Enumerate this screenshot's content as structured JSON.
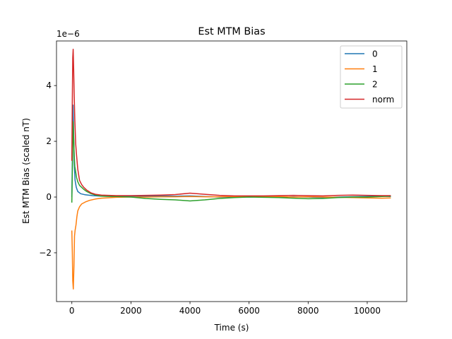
{
  "chart_data": {
    "type": "line",
    "title": "Est MTM Bias",
    "xlabel": "Time (s)",
    "ylabel": "Est MTM Bias (scaled nT)",
    "y_scale_label": "1e−6",
    "xlim": [
      -520,
      11340
    ],
    "ylim": [
      -3.75,
      5.6
    ],
    "xticks": [
      0,
      2000,
      4000,
      6000,
      8000,
      10000
    ],
    "xtick_labels": [
      "0",
      "2000",
      "4000",
      "6000",
      "8000",
      "10000"
    ],
    "yticks": [
      -2,
      0,
      2,
      4
    ],
    "ytick_labels": [
      "−2",
      "0",
      "2",
      "4"
    ],
    "grid": false,
    "legend_position": "top-right",
    "series": [
      {
        "name": "0",
        "color": "#1f77b4",
        "x": [
          0,
          20,
          40,
          60,
          80,
          110,
          150,
          200,
          300,
          450,
          700,
          1000,
          1500,
          2000,
          2500,
          3000,
          3500,
          4000,
          4500,
          5000,
          5500,
          6000,
          6500,
          7000,
          7500,
          8000,
          8500,
          9000,
          9500,
          10000,
          10500,
          10800
        ],
        "values": [
          0.0,
          1.6,
          3.3,
          2.3,
          1.2,
          0.6,
          0.35,
          0.2,
          0.12,
          0.08,
          0.05,
          0.03,
          0.02,
          0.02,
          0.03,
          0.04,
          0.03,
          0.04,
          0.02,
          0.0,
          0.0,
          0.0,
          0.01,
          0.0,
          0.01,
          0.0,
          -0.02,
          0.0,
          0.01,
          0.02,
          0.03,
          0.02
        ]
      },
      {
        "name": "1",
        "color": "#ff7f0e",
        "x": [
          0,
          15,
          30,
          50,
          70,
          90,
          110,
          140,
          170,
          200,
          260,
          330,
          450,
          600,
          800,
          1000,
          1500,
          2000,
          2500,
          3000,
          3500,
          4000,
          4500,
          5000,
          5500,
          6000,
          6500,
          7000,
          7500,
          8000,
          8500,
          9000,
          9500,
          10000,
          10500,
          10800
        ],
        "values": [
          -1.2,
          -2.0,
          -3.0,
          -3.3,
          -2.5,
          -1.4,
          -1.2,
          -1.0,
          -0.7,
          -0.5,
          -0.35,
          -0.25,
          -0.18,
          -0.12,
          -0.07,
          -0.04,
          -0.01,
          0.0,
          0.0,
          0.01,
          0.01,
          0.02,
          0.01,
          0.01,
          0.02,
          0.01,
          0.01,
          0.02,
          0.0,
          0.01,
          0.0,
          -0.01,
          -0.02,
          -0.03,
          -0.04,
          -0.03
        ]
      },
      {
        "name": "2",
        "color": "#2ca02c",
        "x": [
          0,
          20,
          40,
          60,
          80,
          100,
          130,
          160,
          200,
          260,
          330,
          400,
          500,
          650,
          800,
          1000,
          1500,
          2000,
          2500,
          3000,
          3500,
          4000,
          4500,
          5000,
          5500,
          6000,
          6500,
          7000,
          7500,
          8000,
          8500,
          9000,
          9500,
          10000,
          10500,
          10800
        ],
        "values": [
          -0.2,
          1.2,
          2.7,
          2.1,
          1.5,
          1.1,
          0.9,
          0.7,
          0.55,
          0.42,
          0.35,
          0.28,
          0.2,
          0.12,
          0.07,
          0.03,
          0.02,
          0.0,
          -0.05,
          -0.08,
          -0.1,
          -0.14,
          -0.1,
          -0.05,
          -0.02,
          0.0,
          -0.01,
          -0.02,
          -0.04,
          -0.06,
          -0.05,
          -0.02,
          0.0,
          0.0,
          0.02,
          0.03
        ]
      },
      {
        "name": "norm",
        "color": "#d62728",
        "x": [
          0,
          15,
          30,
          45,
          60,
          80,
          100,
          130,
          160,
          200,
          260,
          330,
          400,
          500,
          650,
          800,
          1000,
          1500,
          2000,
          2500,
          3000,
          3500,
          4000,
          4500,
          5000,
          5500,
          6000,
          6500,
          7000,
          7500,
          8000,
          8500,
          9000,
          9500,
          10000,
          10500,
          10800
        ],
        "values": [
          1.3,
          3.5,
          5.0,
          5.3,
          4.6,
          3.6,
          2.8,
          1.9,
          1.5,
          1.0,
          0.6,
          0.45,
          0.35,
          0.25,
          0.15,
          0.1,
          0.07,
          0.05,
          0.05,
          0.06,
          0.07,
          0.09,
          0.14,
          0.1,
          0.06,
          0.04,
          0.04,
          0.04,
          0.05,
          0.06,
          0.05,
          0.04,
          0.06,
          0.07,
          0.06,
          0.05,
          0.05
        ]
      }
    ]
  }
}
